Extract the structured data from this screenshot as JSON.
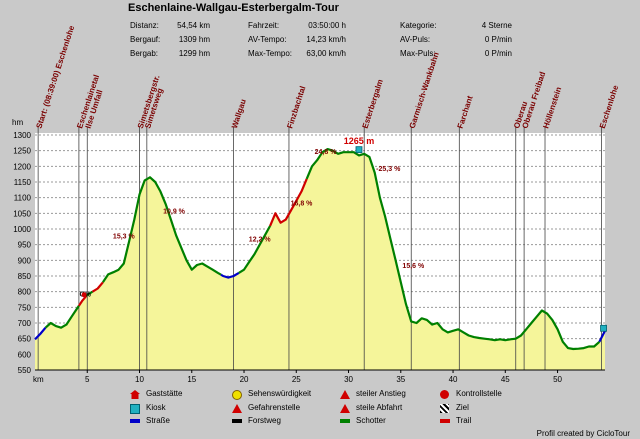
{
  "header": {
    "title": "Eschenlaine-Wallgau-Esterbergalm-Tour",
    "stats": [
      {
        "label": "Distanz:",
        "value": "54,54 km"
      },
      {
        "label": "Bergauf:",
        "value": "1309 hm"
      },
      {
        "label": "Bergab:",
        "value": "1299 hm"
      },
      {
        "label": "Fahrzeit:",
        "value": "03:50:00 h"
      },
      {
        "label": "AV-Tempo:",
        "value": "14,23 km/h"
      },
      {
        "label": "Max-Tempo:",
        "value": "63,00 km/h"
      },
      {
        "label": "Kategorie:",
        "value": "4 Sterne"
      },
      {
        "label": "AV-Puls:",
        "value": "0 P/min"
      },
      {
        "label": "Max-Puls:",
        "value": "0 P/min"
      }
    ]
  },
  "chart_data": {
    "type": "area",
    "xlabel": "km",
    "ylabel": "hm",
    "xlim": [
      0,
      54.54
    ],
    "ylim": [
      550,
      1300
    ],
    "xticks": [
      5,
      10,
      15,
      20,
      25,
      30,
      35,
      40,
      45,
      50
    ],
    "yticks": [
      550,
      600,
      650,
      700,
      750,
      800,
      850,
      900,
      950,
      1000,
      1050,
      1100,
      1150,
      1200,
      1250,
      1300
    ],
    "grid": true,
    "x": [
      0,
      0.5,
      1.0,
      1.5,
      2.0,
      2.5,
      3.0,
      3.5,
      4.0,
      4.5,
      5.0,
      5.5,
      6.0,
      6.5,
      7.0,
      7.5,
      8.0,
      8.5,
      9.0,
      9.5,
      10.0,
      10.5,
      11.0,
      11.5,
      12.0,
      12.5,
      13.0,
      13.5,
      14.0,
      14.5,
      15.0,
      15.5,
      16.0,
      16.5,
      17.0,
      17.5,
      18.0,
      18.5,
      19.0,
      19.5,
      20.0,
      20.5,
      21.0,
      21.5,
      22.0,
      22.5,
      23.0,
      23.5,
      24.0,
      24.5,
      25.0,
      25.5,
      26.0,
      26.5,
      27.0,
      27.5,
      28.0,
      28.5,
      29.0,
      29.5,
      30.0,
      30.5,
      31.0,
      31.5,
      32.0,
      32.5,
      33.0,
      33.5,
      34.0,
      34.5,
      35.0,
      35.5,
      36.0,
      36.5,
      37.0,
      37.5,
      38.0,
      38.5,
      39.0,
      39.5,
      40.0,
      40.5,
      41.0,
      41.5,
      42.0,
      42.5,
      43.0,
      43.5,
      44.0,
      44.5,
      45.0,
      45.5,
      46.0,
      46.5,
      47.0,
      47.5,
      48.0,
      48.5,
      49.0,
      49.5,
      50.0,
      50.5,
      51.0,
      51.5,
      52.0,
      52.5,
      53.0,
      53.5,
      54.0,
      54.54
    ],
    "y": [
      648,
      665,
      685,
      700,
      690,
      685,
      695,
      720,
      745,
      770,
      790,
      800,
      810,
      830,
      855,
      862,
      870,
      890,
      960,
      1030,
      1110,
      1155,
      1165,
      1150,
      1120,
      1080,
      1030,
      980,
      940,
      900,
      870,
      885,
      890,
      880,
      870,
      860,
      850,
      845,
      850,
      860,
      870,
      895,
      920,
      950,
      980,
      1010,
      1050,
      1020,
      1030,
      1060,
      1090,
      1120,
      1160,
      1200,
      1220,
      1245,
      1255,
      1250,
      1240,
      1245,
      1245,
      1245,
      1235,
      1240,
      1230,
      1180,
      1100,
      1040,
      970,
      900,
      830,
      760,
      705,
      700,
      715,
      710,
      695,
      700,
      680,
      670,
      675,
      680,
      670,
      660,
      655,
      652,
      650,
      648,
      645,
      648,
      645,
      648,
      650,
      660,
      680,
      700,
      720,
      740,
      730,
      710,
      680,
      640,
      620,
      617,
      618,
      620,
      625,
      625,
      640,
      675
    ],
    "segments": [
      {
        "kind": "Straße",
        "color": "#0000c8",
        "from": 0,
        "to": 1.0
      },
      {
        "kind": "Schotter",
        "color": "#008000",
        "from": 1.0,
        "to": 4.2
      },
      {
        "kind": "Trail",
        "color": "#d00000",
        "from": 4.2,
        "to": 4.9
      },
      {
        "kind": "Schotter",
        "color": "#008000",
        "from": 4.9,
        "to": 5.5
      },
      {
        "kind": "Trail",
        "color": "#d00000",
        "from": 5.5,
        "to": 6.5
      },
      {
        "kind": "Schotter",
        "color": "#008000",
        "from": 6.5,
        "to": 17.8
      },
      {
        "kind": "Straße",
        "color": "#0000c8",
        "from": 17.8,
        "to": 19.5
      },
      {
        "kind": "Schotter",
        "color": "#008000",
        "from": 19.5,
        "to": 22.5
      },
      {
        "kind": "Trail",
        "color": "#d00000",
        "from": 22.5,
        "to": 26.0
      },
      {
        "kind": "Schotter",
        "color": "#008000",
        "from": 26.0,
        "to": 54.0
      },
      {
        "kind": "Straße",
        "color": "#0000c8",
        "from": 54.0,
        "to": 54.54
      }
    ],
    "waypoints": [
      {
        "km": 0.3,
        "label": "Start: (08:39:00) Eschenlohe"
      },
      {
        "km": 4.2,
        "label": "Eschenlainetal"
      },
      {
        "km": 5.0,
        "label": "Ilse Umfall"
      },
      {
        "km": 10.0,
        "label": "Simetsbergstr."
      },
      {
        "km": 10.7,
        "label": "Simetsweg"
      },
      {
        "km": 19.0,
        "label": "Wallgau"
      },
      {
        "km": 24.3,
        "label": "Finzbachtal"
      },
      {
        "km": 31.5,
        "label": "Esterbergalm"
      },
      {
        "km": 36.0,
        "label": "Garmisch-Wankbahn"
      },
      {
        "km": 40.6,
        "label": "Farchant"
      },
      {
        "km": 46.0,
        "label": "Oberau"
      },
      {
        "km": 46.8,
        "label": "Oberau Freibad"
      },
      {
        "km": 48.8,
        "label": "Höllenstein"
      },
      {
        "km": 54.2,
        "label": "Eschenlohe"
      }
    ],
    "annotations": [
      {
        "km": 4.8,
        "hm": 785,
        "text": "C%",
        "color": "#000000"
      },
      {
        "km": 8.5,
        "hm": 970,
        "text": "15,3 %",
        "color": "#800000"
      },
      {
        "km": 13.3,
        "hm": 1050,
        "text": "10,9 %",
        "color": "#800000"
      },
      {
        "km": 21.5,
        "hm": 960,
        "text": "12,2 %",
        "color": "#800000"
      },
      {
        "km": 25.5,
        "hm": 1075,
        "text": "16,8 %",
        "color": "#800000"
      },
      {
        "km": 27.8,
        "hm": 1240,
        "text": "24,8 %",
        "color": "#800000"
      },
      {
        "km": 33.8,
        "hm": 1185,
        "text": "-25,3 %",
        "color": "#800000"
      },
      {
        "km": 36.2,
        "hm": 875,
        "text": "15,6 %",
        "color": "#800000"
      },
      {
        "km": 31.0,
        "hm": 1272,
        "text": "1265 m",
        "color": "#d00000"
      }
    ]
  },
  "legend": [
    {
      "label": "Gaststätte",
      "icon": "gaststaette-icon",
      "color": "#d00000"
    },
    {
      "label": "Sehenswürdigkeit",
      "icon": "sehenswuerdigkeit-icon",
      "color": "#f0e000"
    },
    {
      "label": "steiler Anstieg",
      "icon": "steiler-anstieg-icon",
      "color": "#d00000"
    },
    {
      "label": "Kontrollstelle",
      "icon": "kontrollstelle-icon",
      "color": "#d00000"
    },
    {
      "label": "Kiosk",
      "icon": "kiosk-icon",
      "color": "#20b0c0"
    },
    {
      "label": "Gefahrenstelle",
      "icon": "gefahrenstelle-icon",
      "color": "#d00000"
    },
    {
      "label": "steile Abfahrt",
      "icon": "steile-abfahrt-icon",
      "color": "#d00000"
    },
    {
      "label": "Ziel",
      "icon": "ziel-icon",
      "color": "#000000"
    },
    {
      "label": "Straße",
      "icon": "strasse-icon",
      "color": "#0000c8"
    },
    {
      "label": "Forstweg",
      "icon": "forstweg-icon",
      "color": "#000000"
    },
    {
      "label": "Schotter",
      "icon": "schotter-icon",
      "color": "#008000"
    },
    {
      "label": "Trail",
      "icon": "trail-icon",
      "color": "#d00000"
    }
  ],
  "footer": {
    "credit": "Profil created by CicloTour"
  }
}
